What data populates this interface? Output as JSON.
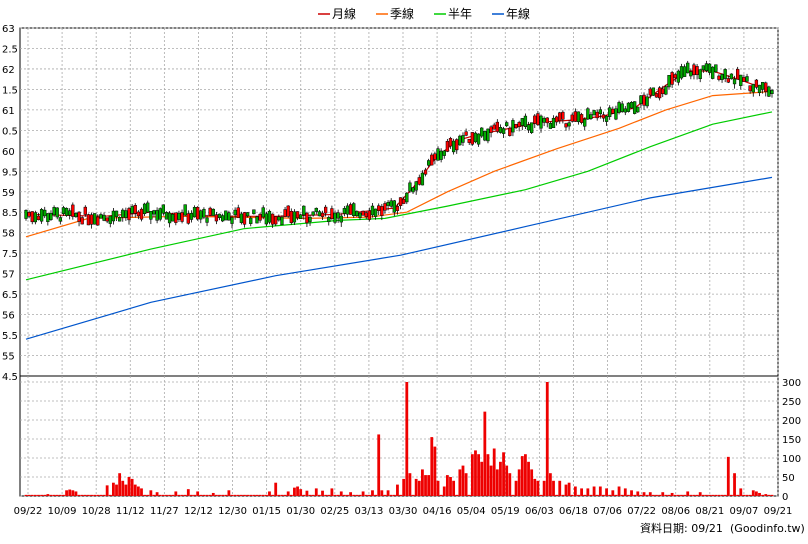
{
  "chart_data": [
    {
      "type": "candlestick",
      "legend": [
        {
          "name": "月線",
          "color": "#cc0000"
        },
        {
          "name": "季線",
          "color": "#ff6600"
        },
        {
          "name": "半年",
          "color": "#00cc00"
        },
        {
          "name": "年線",
          "color": "#0055cc"
        }
      ],
      "x_tick_labels": [
        "09/22",
        "10/09",
        "10/28",
        "11/12",
        "11/27",
        "12/12",
        "12/30",
        "01/15",
        "01/30",
        "02/25",
        "03/13",
        "03/30",
        "04/16",
        "05/04",
        "05/19",
        "06/03",
        "06/18",
        "07/06",
        "07/22",
        "08/06",
        "08/21",
        "09/07",
        "09/21"
      ],
      "y_tick_labels": [
        "63",
        "62.5",
        "62",
        "61.5",
        "61",
        "60.5",
        "60",
        "59.5",
        "59",
        "58.5",
        "58",
        "57.5",
        "57",
        "56.5",
        "56",
        "55.5",
        "55",
        "54.5"
      ],
      "ylim": [
        54.5,
        63
      ],
      "grid": true,
      "moving_averages": {
        "月線": [
          {
            "x": 0,
            "y": 58.45
          },
          {
            "x": 25,
            "y": 58.4
          },
          {
            "x": 40,
            "y": 58.5
          },
          {
            "x": 60,
            "y": 58.4
          },
          {
            "x": 80,
            "y": 58.4
          },
          {
            "x": 100,
            "y": 58.45
          },
          {
            "x": 118,
            "y": 58.6
          },
          {
            "x": 124,
            "y": 59.1
          },
          {
            "x": 131,
            "y": 59.8
          },
          {
            "x": 138,
            "y": 60.25
          },
          {
            "x": 145,
            "y": 60.4
          },
          {
            "x": 155,
            "y": 60.55
          },
          {
            "x": 165,
            "y": 60.7
          },
          {
            "x": 175,
            "y": 60.75
          },
          {
            "x": 185,
            "y": 60.85
          },
          {
            "x": 195,
            "y": 61.05
          },
          {
            "x": 205,
            "y": 61.6
          },
          {
            "x": 212,
            "y": 61.95
          },
          {
            "x": 220,
            "y": 61.95
          },
          {
            "x": 230,
            "y": 61.7
          },
          {
            "x": 239,
            "y": 61.45
          }
        ],
        "季線": [
          {
            "x": 0,
            "y": 57.9
          },
          {
            "x": 20,
            "y": 58.35
          },
          {
            "x": 50,
            "y": 58.4
          },
          {
            "x": 90,
            "y": 58.35
          },
          {
            "x": 110,
            "y": 58.38
          },
          {
            "x": 122,
            "y": 58.5
          },
          {
            "x": 135,
            "y": 59.0
          },
          {
            "x": 150,
            "y": 59.5
          },
          {
            "x": 170,
            "y": 60.05
          },
          {
            "x": 190,
            "y": 60.55
          },
          {
            "x": 205,
            "y": 61.0
          },
          {
            "x": 220,
            "y": 61.35
          },
          {
            "x": 239,
            "y": 61.45
          }
        ],
        "半年": [
          {
            "x": 0,
            "y": 56.85
          },
          {
            "x": 40,
            "y": 57.6
          },
          {
            "x": 70,
            "y": 58.1
          },
          {
            "x": 100,
            "y": 58.3
          },
          {
            "x": 115,
            "y": 58.35
          },
          {
            "x": 135,
            "y": 58.65
          },
          {
            "x": 160,
            "y": 59.05
          },
          {
            "x": 180,
            "y": 59.5
          },
          {
            "x": 200,
            "y": 60.1
          },
          {
            "x": 220,
            "y": 60.65
          },
          {
            "x": 239,
            "y": 60.95
          }
        ],
        "年線": [
          {
            "x": 0,
            "y": 55.4
          },
          {
            "x": 40,
            "y": 56.3
          },
          {
            "x": 80,
            "y": 56.95
          },
          {
            "x": 120,
            "y": 57.45
          },
          {
            "x": 160,
            "y": 58.15
          },
          {
            "x": 200,
            "y": 58.85
          },
          {
            "x": 239,
            "y": 59.35
          }
        ]
      }
    },
    {
      "type": "bar",
      "title": "",
      "y_tick_labels": [
        "300",
        "250",
        "200",
        "150",
        "100",
        "50",
        "0"
      ],
      "ylim": [
        0,
        300
      ],
      "grid": true,
      "spikes": [
        {
          "x": 7,
          "v": 5
        },
        {
          "x": 13,
          "v": 15
        },
        {
          "x": 14,
          "v": 17
        },
        {
          "x": 15,
          "v": 15
        },
        {
          "x": 16,
          "v": 12
        },
        {
          "x": 26,
          "v": 28
        },
        {
          "x": 28,
          "v": 35
        },
        {
          "x": 29,
          "v": 30
        },
        {
          "x": 30,
          "v": 60
        },
        {
          "x": 31,
          "v": 40
        },
        {
          "x": 32,
          "v": 30
        },
        {
          "x": 33,
          "v": 50
        },
        {
          "x": 34,
          "v": 45
        },
        {
          "x": 35,
          "v": 30
        },
        {
          "x": 36,
          "v": 25
        },
        {
          "x": 37,
          "v": 20
        },
        {
          "x": 40,
          "v": 15
        },
        {
          "x": 42,
          "v": 10
        },
        {
          "x": 48,
          "v": 12
        },
        {
          "x": 52,
          "v": 18
        },
        {
          "x": 55,
          "v": 12
        },
        {
          "x": 60,
          "v": 8
        },
        {
          "x": 65,
          "v": 15
        },
        {
          "x": 78,
          "v": 12
        },
        {
          "x": 80,
          "v": 35
        },
        {
          "x": 84,
          "v": 12
        },
        {
          "x": 86,
          "v": 22
        },
        {
          "x": 87,
          "v": 25
        },
        {
          "x": 88,
          "v": 18
        },
        {
          "x": 90,
          "v": 14
        },
        {
          "x": 93,
          "v": 20
        },
        {
          "x": 95,
          "v": 14
        },
        {
          "x": 98,
          "v": 20
        },
        {
          "x": 101,
          "v": 12
        },
        {
          "x": 104,
          "v": 10
        },
        {
          "x": 108,
          "v": 12
        },
        {
          "x": 111,
          "v": 15
        },
        {
          "x": 113,
          "v": 162
        },
        {
          "x": 114,
          "v": 15
        },
        {
          "x": 116,
          "v": 15
        },
        {
          "x": 119,
          "v": 30
        },
        {
          "x": 121,
          "v": 45
        },
        {
          "x": 122,
          "v": 300
        },
        {
          "x": 123,
          "v": 60
        },
        {
          "x": 125,
          "v": 45
        },
        {
          "x": 126,
          "v": 40
        },
        {
          "x": 127,
          "v": 70
        },
        {
          "x": 128,
          "v": 55
        },
        {
          "x": 129,
          "v": 55
        },
        {
          "x": 130,
          "v": 155
        },
        {
          "x": 131,
          "v": 130
        },
        {
          "x": 132,
          "v": 40
        },
        {
          "x": 134,
          "v": 25
        },
        {
          "x": 135,
          "v": 55
        },
        {
          "x": 136,
          "v": 50
        },
        {
          "x": 137,
          "v": 40
        },
        {
          "x": 139,
          "v": 70
        },
        {
          "x": 140,
          "v": 80
        },
        {
          "x": 141,
          "v": 60
        },
        {
          "x": 143,
          "v": 110
        },
        {
          "x": 144,
          "v": 120
        },
        {
          "x": 145,
          "v": 110
        },
        {
          "x": 146,
          "v": 90
        },
        {
          "x": 147,
          "v": 222
        },
        {
          "x": 148,
          "v": 110
        },
        {
          "x": 149,
          "v": 80
        },
        {
          "x": 150,
          "v": 125
        },
        {
          "x": 151,
          "v": 70
        },
        {
          "x": 152,
          "v": 90
        },
        {
          "x": 153,
          "v": 115
        },
        {
          "x": 154,
          "v": 80
        },
        {
          "x": 155,
          "v": 60
        },
        {
          "x": 157,
          "v": 40
        },
        {
          "x": 158,
          "v": 70
        },
        {
          "x": 159,
          "v": 105
        },
        {
          "x": 160,
          "v": 110
        },
        {
          "x": 161,
          "v": 90
        },
        {
          "x": 162,
          "v": 70
        },
        {
          "x": 163,
          "v": 45
        },
        {
          "x": 164,
          "v": 40
        },
        {
          "x": 166,
          "v": 40
        },
        {
          "x": 167,
          "v": 300
        },
        {
          "x": 168,
          "v": 60
        },
        {
          "x": 169,
          "v": 40
        },
        {
          "x": 171,
          "v": 40
        },
        {
          "x": 173,
          "v": 30
        },
        {
          "x": 174,
          "v": 35
        },
        {
          "x": 176,
          "v": 25
        },
        {
          "x": 178,
          "v": 20
        },
        {
          "x": 180,
          "v": 20
        },
        {
          "x": 182,
          "v": 25
        },
        {
          "x": 184,
          "v": 25
        },
        {
          "x": 186,
          "v": 20
        },
        {
          "x": 188,
          "v": 15
        },
        {
          "x": 190,
          "v": 25
        },
        {
          "x": 192,
          "v": 20
        },
        {
          "x": 194,
          "v": 15
        },
        {
          "x": 196,
          "v": 12
        },
        {
          "x": 198,
          "v": 10
        },
        {
          "x": 200,
          "v": 10
        },
        {
          "x": 204,
          "v": 10
        },
        {
          "x": 207,
          "v": 8
        },
        {
          "x": 212,
          "v": 12
        },
        {
          "x": 216,
          "v": 10
        },
        {
          "x": 225,
          "v": 103
        },
        {
          "x": 227,
          "v": 60
        },
        {
          "x": 229,
          "v": 20
        },
        {
          "x": 233,
          "v": 15
        },
        {
          "x": 234,
          "v": 12
        },
        {
          "x": 235,
          "v": 8
        },
        {
          "x": 237,
          "v": 5
        }
      ],
      "baseline_volume": 3
    }
  ],
  "source_label": "資料日期: 09/21",
  "site_label": "(Goodinfo.tw)"
}
